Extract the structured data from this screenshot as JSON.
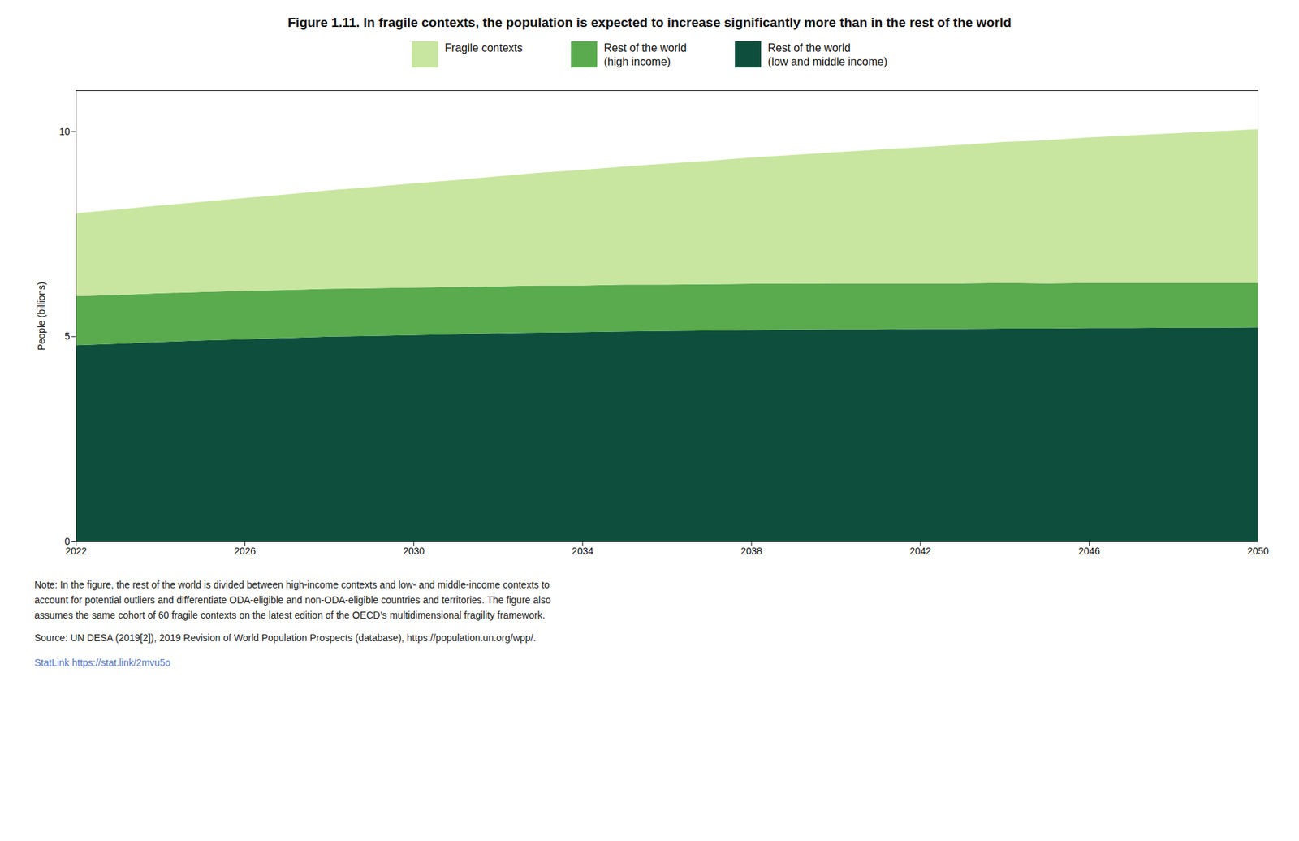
{
  "chart_data": {
    "type": "area",
    "title": "Figure 1.11. In fragile contexts, the population is expected to increase significantly more than in the rest of the world",
    "ylabel": "People (billions)",
    "x": [
      2022,
      2023,
      2024,
      2025,
      2026,
      2027,
      2028,
      2029,
      2030,
      2031,
      2032,
      2033,
      2034,
      2035,
      2036,
      2037,
      2038,
      2039,
      2040,
      2041,
      2042,
      2043,
      2044,
      2045,
      2046,
      2047,
      2048,
      2049,
      2050
    ],
    "series": [
      {
        "name": "Rest of the world\n(low and middle income)",
        "color": "#0d4f3c",
        "values": [
          4.78,
          4.82,
          4.86,
          4.9,
          4.93,
          4.96,
          4.99,
          5.01,
          5.03,
          5.05,
          5.07,
          5.09,
          5.1,
          5.12,
          5.13,
          5.14,
          5.15,
          5.16,
          5.17,
          5.17,
          5.18,
          5.18,
          5.19,
          5.19,
          5.2,
          5.2,
          5.21,
          5.21,
          5.22
        ]
      },
      {
        "name": "Rest of the world\n(high income)",
        "color": "#5aaa4e",
        "values": [
          1.2,
          1.19,
          1.19,
          1.18,
          1.18,
          1.17,
          1.17,
          1.16,
          1.16,
          1.15,
          1.15,
          1.15,
          1.14,
          1.14,
          1.13,
          1.13,
          1.13,
          1.12,
          1.12,
          1.12,
          1.11,
          1.11,
          1.11,
          1.1,
          1.1,
          1.1,
          1.09,
          1.09,
          1.08
        ]
      },
      {
        "name": "Fragile contexts",
        "color": "#c8e6a0",
        "values": [
          2.02,
          2.08,
          2.14,
          2.2,
          2.26,
          2.33,
          2.4,
          2.47,
          2.54,
          2.61,
          2.68,
          2.75,
          2.82,
          2.88,
          2.95,
          3.01,
          3.08,
          3.14,
          3.2,
          3.26,
          3.32,
          3.38,
          3.44,
          3.49,
          3.55,
          3.6,
          3.65,
          3.7,
          3.75
        ]
      }
    ],
    "stacked": true,
    "xlim": [
      2022,
      2050
    ],
    "xticks": [
      2022,
      2026,
      2030,
      2034,
      2038,
      2042,
      2046,
      2050
    ],
    "ylim": [
      0,
      11
    ],
    "yticks": [
      0,
      5,
      10
    ],
    "grid": false,
    "legend": "top",
    "annotations": [
      "Note: In the figure, the rest of the world is divided between high-income contexts and low- and middle-income contexts to",
      "account for potential outliers and differentiate ODA-eligible and non-ODA-eligible countries and territories. The figure also",
      "assumes the same cohort of 60 fragile contexts on the latest edition of the OECD’s multidimensional fragility framework.",
      "Source: UN DESA (2019[2]), 2019 Revision of World Population Prospects (database), https://population.un.org/wpp/.",
      "StatLink https://stat.link/2mvu5o"
    ]
  }
}
